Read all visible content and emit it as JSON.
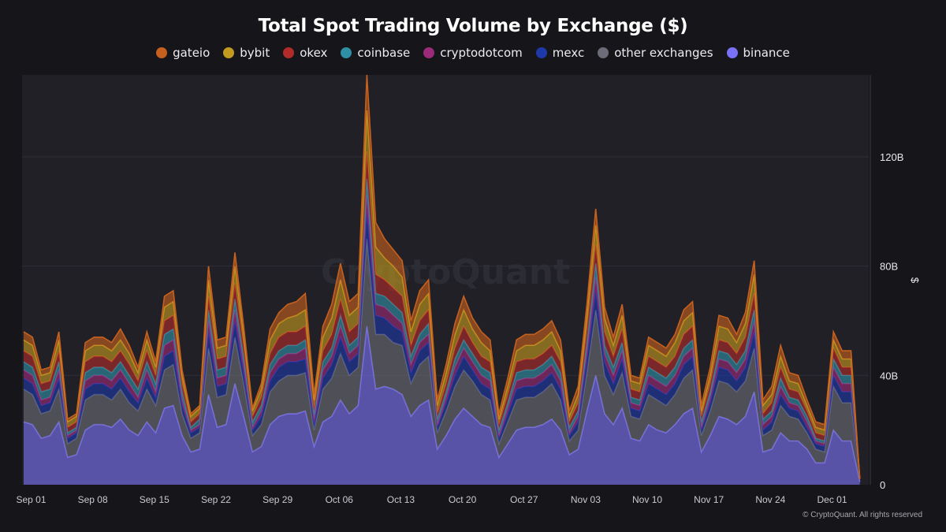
{
  "chart_data": {
    "type": "area",
    "stacked": true,
    "title": "Total Spot Trading Volume by Exchange ($)",
    "xlabel": "",
    "ylabel": "$",
    "ylim": [
      0,
      150
    ],
    "yticks": [
      "0",
      "40B",
      "80B",
      "120B"
    ],
    "ytick_values": [
      0,
      40,
      80,
      120
    ],
    "y_unit": "B",
    "xticks": [
      "Sep 01",
      "Sep 08",
      "Sep 15",
      "Sep 22",
      "Sep 29",
      "Oct 06",
      "Oct 13",
      "Oct 20",
      "Oct 27",
      "Nov 03",
      "Nov 10",
      "Nov 17",
      "Nov 24",
      "Dec 01"
    ],
    "x_start": "2024-09-01",
    "legend_position": "top",
    "grid": true,
    "watermark": "CryptoQuant",
    "legend_order": [
      "gateio",
      "bybit",
      "okex",
      "coinbase",
      "cryptodotcom",
      "mexc",
      "other exchanges",
      "binance"
    ],
    "series": [
      {
        "name": "binance",
        "color": "#7a72f5",
        "values": [
          23,
          22,
          17,
          18,
          23,
          10,
          11,
          20,
          22,
          22,
          21,
          24,
          20,
          18,
          23,
          19,
          28,
          29,
          18,
          12,
          13,
          33,
          21,
          22,
          37,
          25,
          12,
          14,
          22,
          25,
          26,
          26,
          27,
          14,
          23,
          25,
          31,
          26,
          29,
          58,
          35,
          36,
          35,
          33,
          25,
          29,
          31,
          13,
          18,
          24,
          28,
          25,
          22,
          21,
          10,
          15,
          20,
          21,
          21,
          22,
          24,
          20,
          11,
          13,
          27,
          40,
          26,
          22,
          28,
          17,
          16,
          22,
          20,
          19,
          22,
          26,
          28,
          12,
          18,
          25,
          24,
          22,
          25,
          34,
          12,
          13,
          19,
          16,
          16,
          13,
          8,
          8,
          20,
          16,
          16,
          1
        ]
      },
      {
        "name": "other exchanges",
        "color": "#6c6c78",
        "values": [
          12,
          11,
          9,
          9,
          12,
          5,
          6,
          11,
          11,
          11,
          10,
          11,
          10,
          9,
          12,
          10,
          14,
          15,
          8,
          5,
          6,
          17,
          11,
          11,
          17,
          12,
          6,
          8,
          12,
          13,
          14,
          14,
          14,
          6,
          12,
          14,
          17,
          14,
          14,
          32,
          20,
          19,
          17,
          18,
          12,
          15,
          16,
          6,
          9,
          12,
          14,
          13,
          11,
          10,
          5,
          8,
          11,
          11,
          11,
          12,
          13,
          11,
          5,
          7,
          14,
          24,
          14,
          11,
          13,
          8,
          8,
          11,
          11,
          10,
          11,
          13,
          14,
          6,
          9,
          13,
          13,
          12,
          13,
          16,
          6,
          7,
          10,
          9,
          8,
          6,
          5,
          4,
          16,
          14,
          14,
          1
        ]
      },
      {
        "name": "mexc",
        "color": "#1f38a8",
        "values": [
          4,
          4,
          3,
          3,
          4,
          2,
          2,
          4,
          4,
          4,
          4,
          4,
          4,
          3,
          4,
          3,
          5,
          5,
          3,
          2,
          2,
          6,
          4,
          4,
          6,
          4,
          2,
          3,
          4,
          5,
          5,
          5,
          5,
          2,
          4,
          5,
          6,
          5,
          5,
          10,
          7,
          6,
          6,
          5,
          4,
          5,
          5,
          2,
          3,
          4,
          5,
          4,
          4,
          4,
          2,
          3,
          4,
          4,
          4,
          4,
          4,
          4,
          2,
          3,
          5,
          7,
          5,
          4,
          5,
          3,
          3,
          4,
          4,
          4,
          4,
          5,
          5,
          2,
          3,
          5,
          5,
          4,
          5,
          6,
          2,
          3,
          4,
          3,
          3,
          2,
          2,
          2,
          4,
          4,
          4,
          0
        ]
      },
      {
        "name": "cryptodotcom",
        "color": "#9b2a78",
        "values": [
          3,
          3,
          2,
          2,
          3,
          1,
          1,
          3,
          3,
          3,
          3,
          3,
          3,
          2,
          3,
          2,
          4,
          4,
          2,
          1,
          1,
          4,
          3,
          3,
          4,
          3,
          1,
          2,
          3,
          3,
          3,
          3,
          4,
          2,
          3,
          3,
          4,
          3,
          3,
          6,
          4,
          4,
          4,
          3,
          3,
          3,
          3,
          1,
          2,
          3,
          3,
          3,
          3,
          3,
          1,
          2,
          3,
          3,
          3,
          3,
          3,
          3,
          1,
          2,
          3,
          5,
          3,
          3,
          3,
          2,
          2,
          3,
          3,
          3,
          3,
          3,
          3,
          1,
          2,
          3,
          3,
          3,
          3,
          4,
          2,
          2,
          3,
          2,
          2,
          2,
          1,
          1,
          3,
          3,
          3,
          0
        ]
      },
      {
        "name": "coinbase",
        "color": "#2f8fa5",
        "values": [
          3,
          3,
          3,
          3,
          3,
          1,
          1,
          3,
          3,
          3,
          3,
          3,
          3,
          3,
          3,
          3,
          4,
          4,
          3,
          1,
          2,
          4,
          3,
          3,
          4,
          3,
          2,
          2,
          3,
          3,
          3,
          3,
          3,
          2,
          3,
          3,
          4,
          3,
          3,
          6,
          4,
          4,
          4,
          4,
          3,
          3,
          4,
          2,
          2,
          3,
          3,
          3,
          3,
          3,
          2,
          2,
          3,
          3,
          3,
          3,
          3,
          3,
          2,
          2,
          3,
          5,
          3,
          3,
          3,
          2,
          2,
          3,
          3,
          3,
          3,
          3,
          3,
          2,
          2,
          3,
          3,
          3,
          3,
          4,
          2,
          2,
          3,
          2,
          2,
          2,
          1,
          1,
          3,
          3,
          3,
          0
        ]
      },
      {
        "name": "okex",
        "color": "#b22b2b",
        "values": [
          4,
          4,
          3,
          3,
          4,
          2,
          2,
          4,
          4,
          4,
          4,
          4,
          4,
          3,
          4,
          3,
          5,
          5,
          3,
          2,
          2,
          5,
          4,
          4,
          6,
          4,
          2,
          3,
          4,
          5,
          5,
          5,
          5,
          2,
          4,
          5,
          6,
          5,
          5,
          10,
          7,
          6,
          6,
          6,
          4,
          5,
          5,
          2,
          3,
          4,
          5,
          4,
          4,
          4,
          2,
          3,
          4,
          4,
          4,
          4,
          4,
          4,
          2,
          3,
          5,
          7,
          5,
          4,
          5,
          3,
          3,
          4,
          4,
          4,
          4,
          5,
          5,
          2,
          3,
          4,
          4,
          4,
          5,
          6,
          2,
          3,
          4,
          3,
          3,
          2,
          2,
          2,
          4,
          3,
          3,
          0
        ]
      },
      {
        "name": "bybit",
        "color": "#c29a1f",
        "values": [
          4,
          4,
          3,
          3,
          4,
          2,
          2,
          4,
          4,
          4,
          4,
          4,
          4,
          3,
          4,
          3,
          5,
          5,
          3,
          2,
          2,
          6,
          4,
          4,
          6,
          4,
          2,
          3,
          5,
          5,
          5,
          6,
          6,
          3,
          5,
          6,
          7,
          6,
          6,
          15,
          10,
          8,
          8,
          7,
          5,
          6,
          6,
          3,
          4,
          5,
          6,
          5,
          5,
          4,
          2,
          3,
          4,
          5,
          5,
          5,
          5,
          4,
          2,
          3,
          5,
          7,
          5,
          4,
          5,
          3,
          3,
          4,
          4,
          4,
          5,
          5,
          5,
          2,
          3,
          5,
          5,
          4,
          5,
          7,
          3,
          3,
          4,
          3,
          3,
          2,
          2,
          2,
          3,
          3,
          3,
          0
        ]
      },
      {
        "name": "gateio",
        "color": "#c5601e",
        "values": [
          3,
          3,
          2,
          2,
          3,
          1,
          1,
          3,
          3,
          3,
          3,
          4,
          3,
          2,
          3,
          2,
          4,
          4,
          2,
          1,
          1,
          5,
          3,
          3,
          5,
          3,
          1,
          2,
          4,
          4,
          5,
          5,
          6,
          2,
          4,
          5,
          6,
          5,
          5,
          13,
          9,
          7,
          6,
          6,
          4,
          5,
          5,
          2,
          3,
          4,
          5,
          4,
          4,
          4,
          2,
          3,
          4,
          4,
          4,
          4,
          4,
          4,
          2,
          3,
          4,
          6,
          4,
          3,
          4,
          2,
          2,
          3,
          3,
          3,
          3,
          4,
          4,
          2,
          3,
          4,
          4,
          3,
          4,
          5,
          2,
          3,
          4,
          3,
          3,
          2,
          2,
          2,
          3,
          3,
          3,
          0
        ]
      }
    ]
  },
  "footer": "© CryptoQuant. All rights reserved"
}
